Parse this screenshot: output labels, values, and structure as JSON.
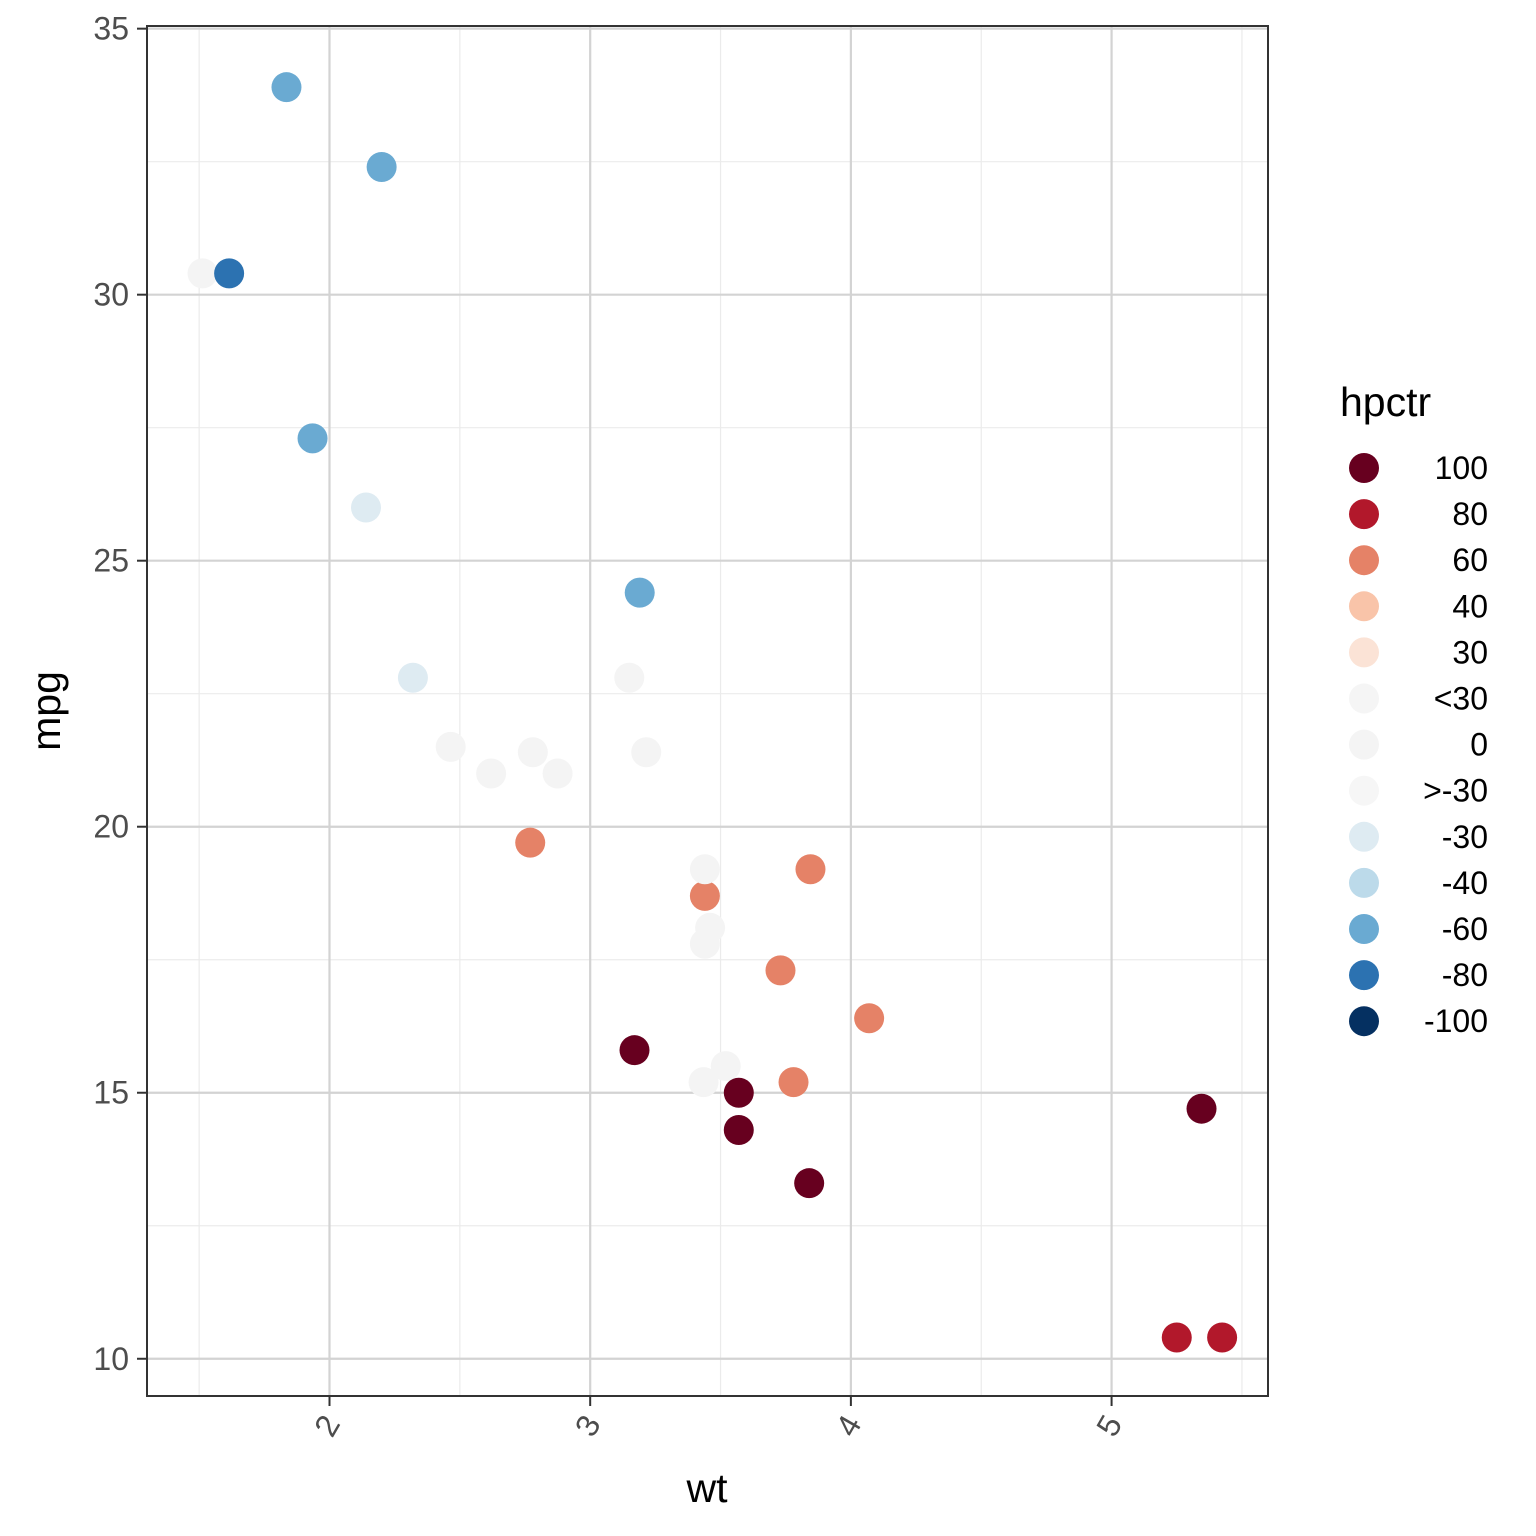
{
  "chart_data": {
    "type": "scatter",
    "title": "",
    "xlabel": "wt",
    "ylabel": "mpg",
    "xlim": [
      1.3,
      5.6
    ],
    "ylim": [
      9.3,
      35.05
    ],
    "x_ticks": [
      2,
      3,
      4,
      5
    ],
    "x_tick_labels": [
      "2",
      "3",
      "4",
      "5"
    ],
    "x_minor_ticks": [
      1.5,
      2.5,
      3.5,
      4.5,
      5.5
    ],
    "y_ticks": [
      10,
      15,
      20,
      25,
      30,
      35
    ],
    "y_tick_labels": [
      "10",
      "15",
      "20",
      "25",
      "30",
      "35"
    ],
    "y_minor_ticks": [
      12.5,
      17.5,
      22.5,
      27.5,
      32.5
    ],
    "grid": true,
    "legend": {
      "title": "hpctr",
      "position": "right",
      "entries": [
        {
          "label": "100",
          "color": "#67001f"
        },
        {
          "label": "80",
          "color": "#b2182b"
        },
        {
          "label": "60",
          "color": "#e58267"
        },
        {
          "label": "40",
          "color": "#f9c4a9"
        },
        {
          "label": "30",
          "color": "#fbe3d6"
        },
        {
          "label": "<30",
          "color": "#f5f5f5"
        },
        {
          "label": "0",
          "color": "#f4f4f4"
        },
        {
          "label": ">-30",
          "color": "#f6f6f6"
        },
        {
          "label": "-30",
          "color": "#deebf2"
        },
        {
          "label": "-40",
          "color": "#bcdaea"
        },
        {
          "label": "-60",
          "color": "#6aaad2"
        },
        {
          "label": "-80",
          "color": "#2c72b1"
        },
        {
          "label": "-100",
          "color": "#053061"
        }
      ]
    },
    "points": [
      {
        "x": 1.513,
        "y": 30.4,
        "color": "#f4f4f4"
      },
      {
        "x": 1.615,
        "y": 30.4,
        "color": "#2c72b1"
      },
      {
        "x": 1.835,
        "y": 33.9,
        "color": "#6aaad2"
      },
      {
        "x": 1.935,
        "y": 27.3,
        "color": "#6aaad2"
      },
      {
        "x": 2.14,
        "y": 26.0,
        "color": "#deebf2"
      },
      {
        "x": 2.2,
        "y": 32.4,
        "color": "#6aaad2"
      },
      {
        "x": 2.32,
        "y": 22.8,
        "color": "#deebf2"
      },
      {
        "x": 2.465,
        "y": 21.5,
        "color": "#f4f4f4"
      },
      {
        "x": 2.62,
        "y": 21.0,
        "color": "#f4f4f4"
      },
      {
        "x": 2.77,
        "y": 19.7,
        "color": "#e58267"
      },
      {
        "x": 2.78,
        "y": 21.4,
        "color": "#f4f4f4"
      },
      {
        "x": 2.875,
        "y": 21.0,
        "color": "#f4f4f4"
      },
      {
        "x": 3.15,
        "y": 22.8,
        "color": "#f4f4f4"
      },
      {
        "x": 3.17,
        "y": 15.8,
        "color": "#67001f"
      },
      {
        "x": 3.19,
        "y": 24.4,
        "color": "#6aaad2"
      },
      {
        "x": 3.215,
        "y": 21.4,
        "color": "#f4f4f4"
      },
      {
        "x": 3.435,
        "y": 15.2,
        "color": "#f4f4f4"
      },
      {
        "x": 3.44,
        "y": 18.7,
        "color": "#e58267"
      },
      {
        "x": 3.44,
        "y": 19.2,
        "color": "#f4f4f4"
      },
      {
        "x": 3.44,
        "y": 17.8,
        "color": "#f4f4f4"
      },
      {
        "x": 3.46,
        "y": 18.1,
        "color": "#f4f4f4"
      },
      {
        "x": 3.52,
        "y": 15.5,
        "color": "#f4f4f4"
      },
      {
        "x": 3.57,
        "y": 15.0,
        "color": "#67001f"
      },
      {
        "x": 3.57,
        "y": 14.3,
        "color": "#67001f"
      },
      {
        "x": 3.73,
        "y": 17.3,
        "color": "#e58267"
      },
      {
        "x": 3.78,
        "y": 15.2,
        "color": "#e58267"
      },
      {
        "x": 3.84,
        "y": 13.3,
        "color": "#67001f"
      },
      {
        "x": 3.845,
        "y": 19.2,
        "color": "#e58267"
      },
      {
        "x": 4.07,
        "y": 16.4,
        "color": "#e58267"
      },
      {
        "x": 5.25,
        "y": 10.4,
        "color": "#b2182b"
      },
      {
        "x": 5.345,
        "y": 14.7,
        "color": "#67001f"
      },
      {
        "x": 5.424,
        "y": 10.4,
        "color": "#b2182b"
      }
    ]
  }
}
